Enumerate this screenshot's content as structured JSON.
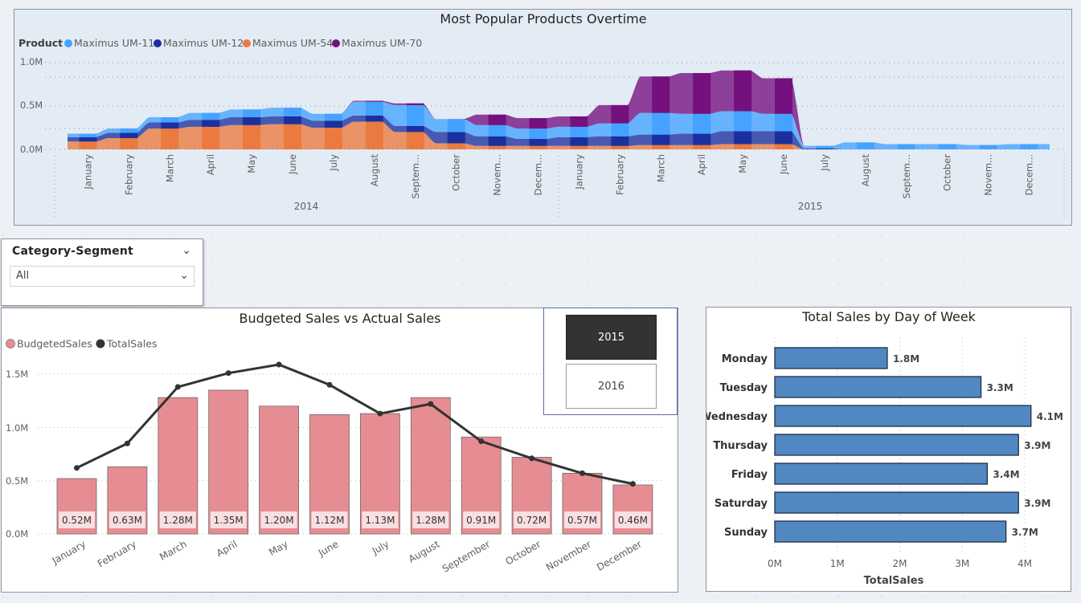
{
  "streamgraph": {
    "title": "Most Popular Products Overtime",
    "legend_title": "Product",
    "series_colors": [
      "#45a3ff",
      "#1c2f9e",
      "#ea7a3f",
      "#75107f"
    ],
    "y_ticks": [
      "1.0M",
      "0.5M",
      "0.0M"
    ],
    "months_2014": [
      "January",
      "February",
      "March",
      "April",
      "May",
      "June",
      "July",
      "August",
      "Septem...",
      "October",
      "Novem...",
      "Decem..."
    ],
    "months_2015": [
      "January",
      "February",
      "March",
      "April",
      "May",
      "June",
      "July",
      "August",
      "Septem...",
      "October",
      "Novem...",
      "Decem..."
    ],
    "years": [
      "2014",
      "2015"
    ]
  },
  "slicer": {
    "title": "Category-Segment",
    "value": "All"
  },
  "year_slicer": {
    "options": [
      "2015",
      "2016"
    ],
    "selected": "2015"
  },
  "chart_data": [
    {
      "type": "area",
      "title": "Most Popular Products Overtime",
      "ylim": [
        0,
        1000000
      ],
      "legend_position": "top-left",
      "x": [
        "2014-01",
        "2014-02",
        "2014-03",
        "2014-04",
        "2014-05",
        "2014-06",
        "2014-07",
        "2014-08",
        "2014-09",
        "2014-10",
        "2014-11",
        "2014-12",
        "2015-01",
        "2015-02",
        "2015-03",
        "2015-04",
        "2015-05",
        "2015-06",
        "2015-07",
        "2015-08",
        "2015-09",
        "2015-10",
        "2015-11",
        "2015-12"
      ],
      "series": [
        {
          "name": "Maximus UM-11",
          "values": [
            40000,
            50000,
            60000,
            80000,
            90000,
            100000,
            80000,
            160000,
            240000,
            150000,
            130000,
            120000,
            120000,
            150000,
            250000,
            230000,
            230000,
            200000,
            30000,
            80000,
            60000,
            60000,
            50000,
            60000
          ]
        },
        {
          "name": "Maximus UM-12",
          "values": [
            50000,
            60000,
            70000,
            80000,
            90000,
            90000,
            80000,
            70000,
            70000,
            130000,
            110000,
            80000,
            100000,
            110000,
            120000,
            130000,
            150000,
            150000,
            10000,
            0,
            0,
            0,
            0,
            0
          ]
        },
        {
          "name": "Maximus UM-54",
          "values": [
            90000,
            130000,
            240000,
            260000,
            280000,
            290000,
            250000,
            320000,
            200000,
            70000,
            40000,
            40000,
            40000,
            40000,
            50000,
            50000,
            60000,
            60000,
            0,
            0,
            0,
            0,
            0,
            0
          ]
        },
        {
          "name": "Maximus UM-70",
          "values": [
            0,
            0,
            0,
            0,
            0,
            0,
            0,
            10000,
            20000,
            0,
            120000,
            120000,
            120000,
            210000,
            420000,
            470000,
            470000,
            410000,
            0,
            0,
            0,
            0,
            0,
            0
          ]
        }
      ]
    },
    {
      "type": "bar",
      "title": "Budgeted Sales vs Actual Sales",
      "legend_position": "top-left",
      "ylim": [
        0,
        1600000
      ],
      "y_ticks": [
        "1.5M",
        "1.0M",
        "0.5M",
        "0.0M"
      ],
      "categories": [
        "January",
        "February",
        "March",
        "April",
        "May",
        "June",
        "July",
        "August",
        "September",
        "October",
        "November",
        "December"
      ],
      "series": [
        {
          "name": "BudgetedSales",
          "color": "#e68d93",
          "values": [
            520000,
            630000,
            1280000,
            1350000,
            1200000,
            1120000,
            1130000,
            1280000,
            910000,
            720000,
            570000,
            460000
          ]
        },
        {
          "name": "TotalSales",
          "color": "#333333",
          "values": [
            620000,
            850000,
            1380000,
            1510000,
            1590000,
            1400000,
            1130000,
            1220000,
            870000,
            710000,
            570000,
            470000
          ]
        }
      ],
      "data_labels": [
        "0.52M",
        "0.63M",
        "1.28M",
        "1.35M",
        "1.20M",
        "1.12M",
        "1.13M",
        "1.28M",
        "0.91M",
        "0.72M",
        "0.57M",
        "0.46M"
      ]
    },
    {
      "type": "bar",
      "orientation": "horizontal",
      "title": "Total Sales by Day of Week",
      "xlabel": "TotalSales",
      "xlim": [
        0,
        4200000
      ],
      "x_ticks": [
        "0M",
        "1M",
        "2M",
        "3M",
        "4M"
      ],
      "color": "#5188c1",
      "categories": [
        "Monday",
        "Tuesday",
        "Wednesday",
        "Thursday",
        "Friday",
        "Saturday",
        "Sunday"
      ],
      "values": [
        1800000,
        3300000,
        4100000,
        3900000,
        3400000,
        3900000,
        3700000
      ],
      "data_labels": [
        "1.8M",
        "3.3M",
        "4.1M",
        "3.9M",
        "3.4M",
        "3.9M",
        "3.7M"
      ]
    }
  ]
}
